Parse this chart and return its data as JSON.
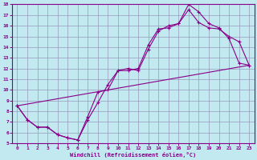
{
  "xlabel": "Windchill (Refroidissement éolien,°C)",
  "xlim": [
    -0.5,
    23.5
  ],
  "ylim": [
    5,
    18
  ],
  "xticks": [
    0,
    1,
    2,
    3,
    4,
    5,
    6,
    7,
    8,
    9,
    10,
    11,
    12,
    13,
    14,
    15,
    16,
    17,
    18,
    19,
    20,
    21,
    22,
    23
  ],
  "yticks": [
    5,
    6,
    7,
    8,
    9,
    10,
    11,
    12,
    13,
    14,
    15,
    16,
    17,
    18
  ],
  "bg_color": "#c2e8f0",
  "grid_color": "#9999bb",
  "line_color": "#880088",
  "line1_x": [
    0,
    1,
    2,
    3,
    4,
    5,
    6,
    7,
    8,
    9,
    10,
    11,
    12,
    13,
    14,
    15,
    16,
    17,
    18,
    19,
    20,
    21,
    22,
    23
  ],
  "line1_y": [
    8.5,
    7.2,
    6.5,
    6.5,
    5.8,
    5.5,
    5.3,
    7.2,
    8.8,
    10.5,
    11.8,
    11.8,
    12.0,
    14.2,
    15.7,
    15.8,
    16.2,
    18.0,
    17.3,
    16.2,
    15.8,
    14.8,
    12.5,
    12.3
  ],
  "line2_x": [
    0,
    1,
    2,
    3,
    4,
    5,
    6,
    7,
    8,
    9,
    10,
    11,
    12,
    13,
    14,
    15,
    16,
    17,
    18,
    19,
    20,
    21,
    22,
    23
  ],
  "line2_y": [
    8.5,
    7.2,
    6.5,
    6.5,
    5.8,
    5.5,
    5.3,
    7.5,
    9.8,
    10.0,
    11.8,
    12.0,
    11.8,
    13.8,
    15.5,
    16.0,
    16.2,
    17.5,
    16.3,
    15.8,
    15.7,
    15.0,
    14.5,
    12.3
  ],
  "line3_x": [
    0,
    23
  ],
  "line3_y": [
    8.5,
    12.3
  ]
}
